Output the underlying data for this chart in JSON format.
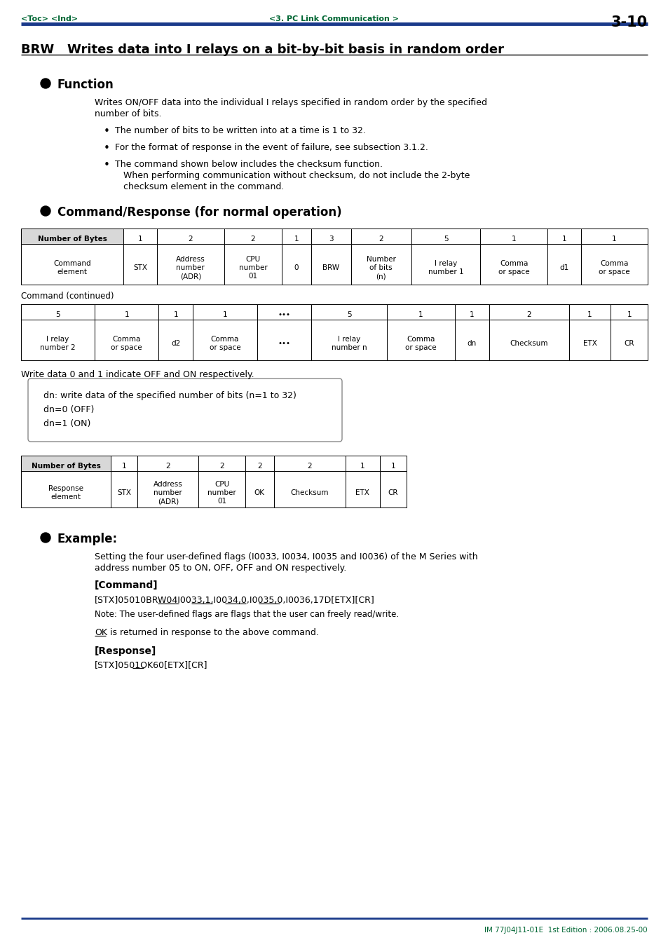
{
  "page_header_left": "<Toc> <Ind>",
  "page_header_center": "<3. PC Link Communication >",
  "page_header_right": "3-10",
  "page_footer": "IM 77J04J11-01E  1st Edition : 2006.08.25-00",
  "main_title": "BRW   Writes data into I relays on a bit-by-bit basis in random order",
  "section1_title": "Function",
  "section1_text1": "Writes ON/OFF data into the individual I relays specified in random order by the specified",
  "section1_text2": "number of bits.",
  "bullet1": "The number of bits to be written into at a time is 1 to 32.",
  "bullet2": "For the format of response in the event of failure, see subsection 3.1.2.",
  "bullet3a": "The command shown below includes the checksum function.",
  "bullet3b": "When performing communication without checksum, do not include the 2-byte",
  "bullet3c": "checksum element in the command.",
  "section2_title": "Command/Response (for normal operation)",
  "cmd_table1_header": [
    "Number of Bytes",
    "1",
    "2",
    "2",
    "1",
    "3",
    "2",
    "5",
    "1",
    "1",
    "1"
  ],
  "cmd_table1_row": [
    "Command\nelement",
    "STX",
    "Address\nnumber\n(ADR)",
    "CPU\nnumber\n01",
    "0",
    "BRW",
    "Number\nof bits\n(n)",
    "I relay\nnumber 1",
    "Comma\nor space",
    "d1",
    "Comma\nor space"
  ],
  "cmd_continued_label": "Command (continued)",
  "cmd_table2_header": [
    "5",
    "1",
    "1",
    "1",
    "•••",
    "5",
    "1",
    "1",
    "2",
    "1",
    "1"
  ],
  "cmd_table2_row": [
    "I relay\nnumber 2",
    "Comma\nor space",
    "d2",
    "Comma\nor space",
    "•••",
    "I relay\nnumber n",
    "Comma\nor space",
    "dn",
    "Checksum",
    "ETX",
    "CR"
  ],
  "write_note": "Write data 0 and 1 indicate OFF and ON respectively.",
  "box_line1": "dn: write data of the specified number of bits (n=1 to 32)",
  "box_line2": "dn=0 (OFF)",
  "box_line3": "dn=1 (ON)",
  "resp_table_header": [
    "Number of Bytes",
    "1",
    "2",
    "2",
    "2",
    "2",
    "1",
    "1"
  ],
  "resp_table_row": [
    "Response\nelement",
    "STX",
    "Address\nnumber\n(ADR)",
    "CPU\nnumber\n01",
    "OK",
    "Checksum",
    "ETX",
    "CR"
  ],
  "section3_title": "Example:",
  "example_text1": "Setting the four user-defined flags (I0033, I0034, I0035 and I0036) of the M Series with",
  "example_text2": "address number 05 to ON, OFF, OFF and ON respectively.",
  "cmd_label": "[Command]",
  "cmd_example": "[STX]05010BRW04I0033,1,I0034,0,I0035,0,I0036,17D[ETX][CR]",
  "cmd_note": "Note: The user-defined flags are flags that the user can freely read/write.",
  "ok_text": "OK is returned in response to the above command.",
  "resp_label": "[Response]",
  "resp_example": "[STX]0501OK60[ETX][CR]",
  "bg_color": "#ffffff",
  "header_color": "#006633",
  "line_color": "#1a3a8a",
  "text_color": "#000000",
  "table_header_bg": "#d8d8d8",
  "table_border": "#000000"
}
